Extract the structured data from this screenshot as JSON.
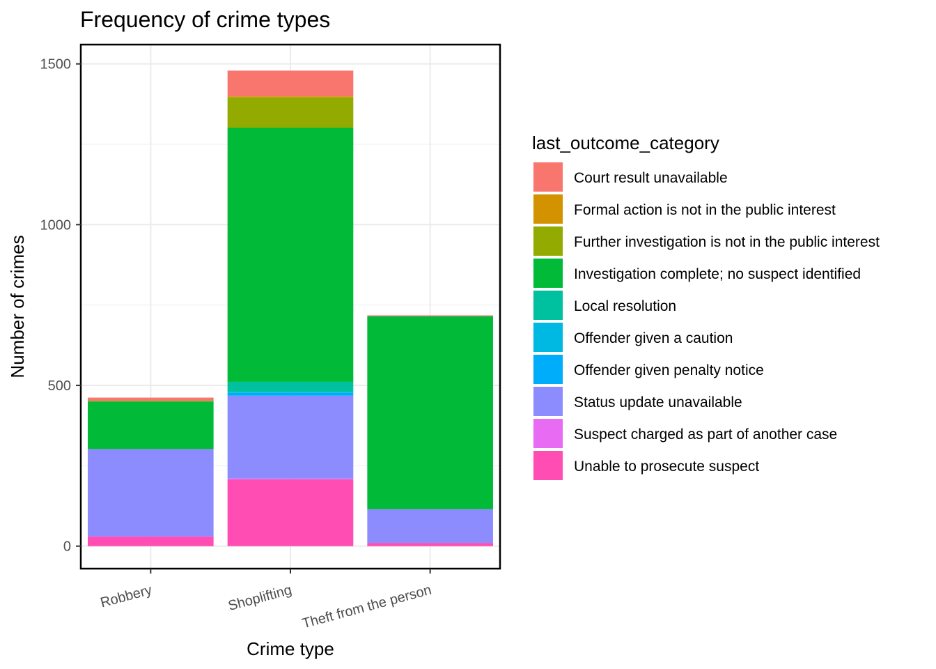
{
  "chart_data": {
    "type": "bar",
    "stacked": true,
    "title": "Frequency of crime types",
    "xlabel": "Crime type",
    "ylabel": "Number of crimes",
    "categories": [
      "Robbery",
      "Shoplifting",
      "Theft from the person"
    ],
    "ylim": [
      -70,
      1560
    ],
    "yticks": [
      0,
      500,
      1000,
      1500
    ],
    "grid": true,
    "legend": {
      "title": "last_outcome_category",
      "position": "right"
    },
    "series": [
      {
        "name": "Court result unavailable",
        "color": "#F8766D",
        "values": [
          10,
          80,
          3
        ]
      },
      {
        "name": "Formal action is not in the public interest",
        "color": "#D39200",
        "values": [
          0,
          3,
          0
        ]
      },
      {
        "name": "Further investigation is not in the public interest",
        "color": "#93AA00",
        "values": [
          2,
          95,
          0
        ]
      },
      {
        "name": "Investigation complete; no suspect identified",
        "color": "#00BA38",
        "values": [
          148,
          790,
          600
        ]
      },
      {
        "name": "Local resolution",
        "color": "#00C19F",
        "values": [
          0,
          32,
          0
        ]
      },
      {
        "name": "Offender given a caution",
        "color": "#00B9E3",
        "values": [
          0,
          2,
          0
        ]
      },
      {
        "name": "Offender given penalty notice",
        "color": "#00ADFA",
        "values": [
          0,
          9,
          0
        ]
      },
      {
        "name": "Status update unavailable",
        "color": "#8C8CFF",
        "values": [
          272,
          258,
          105
        ]
      },
      {
        "name": "Suspect charged as part of another case",
        "color": "#E76BF3",
        "values": [
          0,
          2,
          0
        ]
      },
      {
        "name": "Unable to prosecute suspect",
        "color": "#FF4DB4",
        "values": [
          30,
          208,
          10
        ]
      }
    ]
  }
}
